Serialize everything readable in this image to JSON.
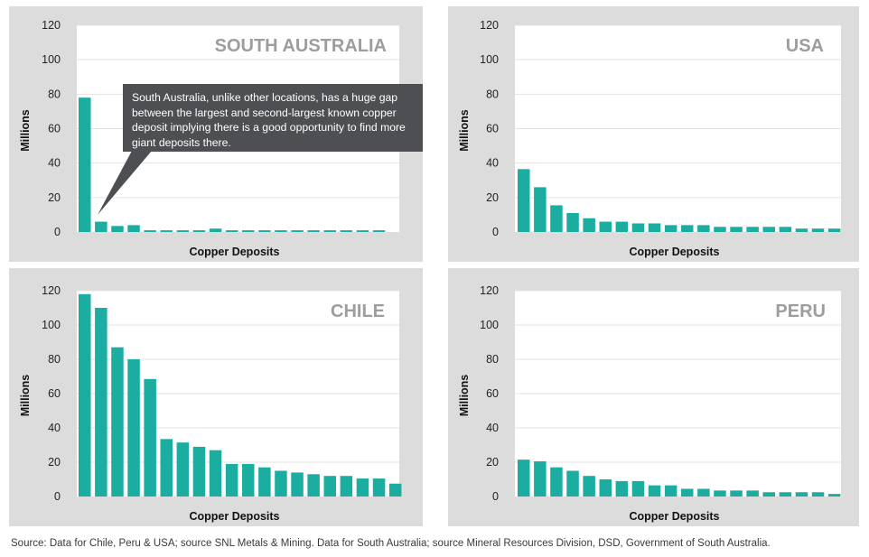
{
  "colors": {
    "bar": "#1cada1",
    "panel_bg": "#dcdcdc",
    "plot_bg": "#ffffff",
    "grid": "#e3e3e3",
    "title": "#9d9d9d",
    "callout_bg": "#4d4f53"
  },
  "chart_data": [
    {
      "id": "south-australia",
      "type": "bar",
      "title": "SOUTH AUSTRALIA",
      "xlabel": "Copper Deposits",
      "ylabel": "Millions",
      "ylim": [
        0,
        120
      ],
      "yticks": [
        "0",
        "20",
        "40",
        "60",
        "80",
        "100",
        "120"
      ],
      "grid": true,
      "values": [
        78,
        6,
        3.5,
        4,
        1,
        1,
        1,
        1,
        2,
        1,
        1,
        1,
        1,
        1,
        1,
        1,
        1,
        1,
        1
      ],
      "annotation": "South Australia, unlike other locations, has a huge gap between the largest and second-largest known copper deposit implying there is a good opportunity to find more giant deposits there."
    },
    {
      "id": "usa",
      "type": "bar",
      "title": "USA",
      "xlabel": "Copper Deposits",
      "ylabel": "Millions",
      "ylim": [
        0,
        120
      ],
      "yticks": [
        "0",
        "20",
        "40",
        "60",
        "80",
        "100",
        "120"
      ],
      "grid": true,
      "values": [
        36.5,
        26,
        15.5,
        11,
        8,
        6,
        6,
        5,
        5,
        4,
        4,
        4,
        3,
        3,
        3,
        3,
        3,
        2,
        2,
        2
      ]
    },
    {
      "id": "chile",
      "type": "bar",
      "title": "CHILE",
      "xlabel": "Copper Deposits",
      "ylabel": "Millions",
      "ylim": [
        0,
        120
      ],
      "yticks": [
        "0",
        "20",
        "40",
        "60",
        "80",
        "100",
        "120"
      ],
      "grid": true,
      "values": [
        118,
        110,
        87,
        80,
        68.5,
        33.5,
        31.5,
        29,
        27,
        19,
        19,
        17,
        15,
        14,
        13,
        12,
        12,
        10.5,
        10.5,
        7.5
      ]
    },
    {
      "id": "peru",
      "type": "bar",
      "title": "PERU",
      "xlabel": "Copper Deposits",
      "ylabel": "Millions",
      "ylim": [
        0,
        120
      ],
      "yticks": [
        "0",
        "20",
        "40",
        "60",
        "80",
        "100",
        "120"
      ],
      "grid": true,
      "values": [
        21.5,
        20.5,
        17,
        15,
        12,
        10,
        9,
        9,
        6.5,
        6.5,
        4.5,
        4.5,
        3.5,
        3.5,
        3.5,
        2.5,
        2.5,
        2.5,
        2.5,
        1.5
      ]
    }
  ],
  "footer": {
    "source": "Source: Data for Chile, Peru & USA; source SNL Metals & Mining. Data for South Australia; source Mineral Resources Division, DSD, Government of South Australia."
  }
}
